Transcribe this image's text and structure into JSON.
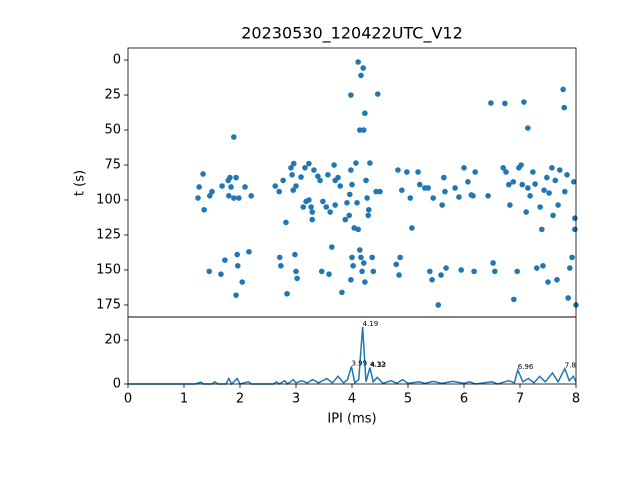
{
  "chart_data": [
    {
      "type": "scatter",
      "title": "20230530_120422UTC_V12",
      "y_label": "t (s)",
      "color": "#1f77b4",
      "xlim": [
        0,
        8
      ],
      "ylim": [
        183.6,
        -8.6
      ],
      "yticks": [
        0,
        25,
        50,
        75,
        100,
        125,
        150,
        175
      ],
      "x": [
        1.27,
        1.34,
        1.25,
        1.36,
        1.46,
        1.5,
        1.45,
        1.66,
        1.73,
        1.68,
        1.79,
        1.82,
        1.84,
        1.8,
        1.89,
        1.93,
        1.89,
        1.98,
        1.95,
        1.96,
        1.93,
        2.04,
        2.09,
        2.16,
        2.2,
        2.63,
        2.7,
        2.71,
        2.73,
        2.77,
        2.82,
        2.84,
        2.91,
        2.93,
        2.96,
        2.95,
        3.0,
        2.98,
        3.0,
        3.02,
        3.09,
        3.13,
        3.16,
        3.18,
        3.23,
        3.27,
        3.29,
        3.29,
        3.23,
        3.32,
        3.39,
        3.43,
        3.46,
        3.48,
        3.54,
        3.57,
        3.61,
        3.64,
        3.59,
        3.68,
        3.7,
        3.75,
        3.7,
        3.79,
        3.82,
        3.98,
        3.98,
        4.0,
        3.96,
        3.95,
        3.98,
        4.0,
        4.02,
        4.11,
        4.16,
        4.14,
        4.21,
        4.2,
        4.07,
        4.09,
        4.11,
        4.14,
        4.16,
        4.21,
        4.18,
        4.23,
        4.25,
        4.27,
        4.3,
        4.29,
        4.32,
        4.36,
        4.38,
        4.43,
        4.46,
        4.5,
        3.91,
        3.88,
        4.04,
        4.23,
        4.82,
        4.79,
        4.86,
        4.84,
        4.89,
        4.98,
        5.04,
        5.07,
        5.18,
        5.21,
        5.3,
        5.36,
        5.39,
        5.43,
        5.54,
        5.45,
        5.59,
        5.61,
        5.64,
        5.66,
        5.68,
        5.84,
        5.91,
        5.95,
        6.0,
        6.07,
        6.13,
        6.16,
        6.2,
        6.18,
        6.43,
        6.48,
        6.52,
        6.55,
        6.7,
        6.73,
        6.75,
        6.8,
        6.82,
        6.88,
        6.89,
        6.95,
        6.98,
        7.02,
        7.04,
        7.07,
        7.11,
        7.14,
        7.14,
        7.18,
        7.23,
        7.27,
        7.3,
        7.36,
        7.39,
        7.41,
        7.43,
        7.48,
        7.5,
        7.52,
        7.57,
        7.59,
        7.63,
        7.66,
        7.68,
        7.71,
        7.77,
        7.79,
        7.8,
        7.84,
        7.86,
        7.89,
        7.93,
        7.96,
        7.98,
        7.98,
        8.0
      ],
      "values": [
        90.7,
        81.4,
        98.6,
        107,
        97,
        94,
        151,
        153,
        143,
        90,
        86,
        84,
        90.7,
        97,
        55,
        84,
        98.6,
        98.6,
        139,
        147,
        168,
        158.6,
        90.7,
        137,
        97,
        90,
        94,
        141,
        147,
        86,
        116,
        167,
        77,
        82,
        74,
        93,
        90,
        139,
        151,
        156,
        83.6,
        105,
        77,
        101,
        100,
        105,
        108.6,
        114,
        74,
        78.6,
        83,
        86,
        151,
        101,
        105,
        82,
        108.6,
        133.6,
        153,
        75,
        86,
        84,
        103.6,
        90,
        166,
        25,
        78.6,
        89,
        96,
        111,
        157,
        141,
        147,
        1.4,
        11,
        50,
        50,
        5.7,
        73.6,
        102,
        121,
        135.7,
        141,
        145,
        151,
        158.6,
        86,
        98.6,
        107,
        111,
        73.6,
        141,
        151,
        94,
        24.3,
        94,
        102,
        114,
        120,
        38,
        78.6,
        146,
        141,
        153.6,
        93,
        80,
        98.6,
        120,
        80,
        89,
        91.4,
        91.4,
        151,
        157,
        175,
        98.6,
        153.6,
        103.6,
        84,
        94,
        148.6,
        91.4,
        97.9,
        150,
        77,
        87,
        96.4,
        97,
        80,
        151,
        97,
        30.7,
        145,
        151,
        77,
        31,
        80,
        89,
        103.6,
        87,
        171,
        151,
        77,
        75,
        89,
        30,
        108.6,
        48.6,
        91.4,
        97,
        80,
        88.6,
        148.6,
        105,
        121,
        147,
        93,
        84,
        158.6,
        95,
        77,
        111,
        86,
        157,
        103.6,
        78.6,
        21,
        34,
        94,
        82,
        170,
        148.6,
        141,
        87,
        113,
        121,
        175
      ]
    },
    {
      "type": "line",
      "x_label": "IPI (ms)",
      "color": "#1f77b4",
      "xlim": [
        0,
        8
      ],
      "xticks": [
        0,
        1,
        2,
        3,
        4,
        5,
        6,
        7,
        8
      ],
      "ylim": [
        0,
        30.5
      ],
      "yticks": [
        0,
        20
      ],
      "x": [
        0,
        1.2,
        1.3,
        1.35,
        1.5,
        1.55,
        1.6,
        1.75,
        1.8,
        1.85,
        1.95,
        2.0,
        2.15,
        2.2,
        2.6,
        2.65,
        2.7,
        2.8,
        2.85,
        2.95,
        3.0,
        3.1,
        3.2,
        3.3,
        3.4,
        3.55,
        3.65,
        3.75,
        3.85,
        3.92,
        3.99,
        4.05,
        4.12,
        4.19,
        4.25,
        4.32,
        4.38,
        4.45,
        4.55,
        4.7,
        4.8,
        4.9,
        5.0,
        5.2,
        5.3,
        5.45,
        5.6,
        5.8,
        6.0,
        6.1,
        6.2,
        6.5,
        6.6,
        6.8,
        6.9,
        6.96,
        7.05,
        7.15,
        7.25,
        7.35,
        7.45,
        7.58,
        7.68,
        7.8,
        7.88,
        7.95,
        8
      ],
      "values": [
        0,
        0,
        0.8,
        0,
        0,
        1,
        0,
        0,
        2.5,
        0,
        2.5,
        0,
        1,
        0,
        0,
        1,
        0,
        1.5,
        0,
        2,
        0.5,
        1.5,
        0.5,
        2,
        0.5,
        2.5,
        0.5,
        3.5,
        0.5,
        2,
        8,
        0.5,
        2,
        25.9,
        1,
        7.5,
        1,
        3,
        0.3,
        1.5,
        0.3,
        2,
        0.3,
        1,
        0.3,
        1.2,
        0.3,
        1.2,
        0.3,
        1,
        0,
        1,
        0,
        1.5,
        0.5,
        6.4,
        1,
        2.5,
        0.5,
        3.5,
        1,
        5,
        1,
        7,
        1.5,
        3.5,
        1
      ],
      "annotations": [
        {
          "x": 3.99,
          "y": 8
        },
        {
          "x": 4.19,
          "y": 25.9
        },
        {
          "x": 4.32,
          "y": 7.5
        },
        {
          "x": 4.33,
          "y": 7.2
        },
        {
          "x": 6.96,
          "y": 6.4
        },
        {
          "x": 7.8,
          "y": 7
        }
      ]
    }
  ]
}
